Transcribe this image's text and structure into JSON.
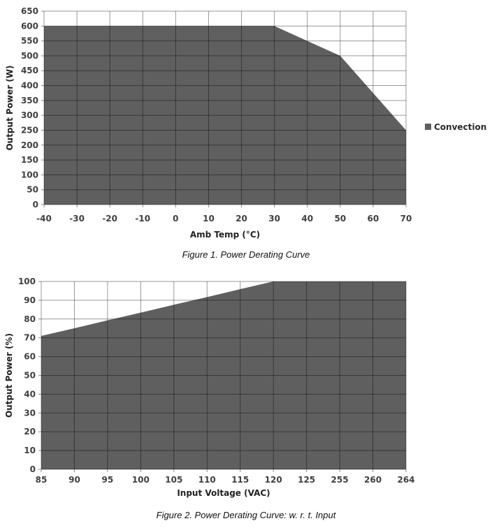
{
  "page": {
    "background": "#ffffff"
  },
  "chart_data": [
    {
      "type": "area",
      "caption": "Figure 1. Power Derating Curve",
      "xlabel": "Amb Temp (°C)",
      "ylabel": "Output Power (W)",
      "categories": [
        "-40",
        "-30",
        "-20",
        "-10",
        "0",
        "10",
        "20",
        "30",
        "40",
        "50",
        "60",
        "70"
      ],
      "series": [
        {
          "name": "Convection",
          "values": [
            600,
            600,
            600,
            600,
            600,
            600,
            600,
            600,
            550,
            500,
            375,
            250
          ]
        }
      ],
      "ylim": [
        0,
        650
      ],
      "y_ticks": [
        0,
        50,
        100,
        150,
        200,
        250,
        300,
        350,
        400,
        450,
        500,
        550,
        600,
        650
      ],
      "grid": true,
      "legend": {
        "visible": true,
        "position": "right-middle",
        "label": "Convection"
      },
      "colors": {
        "fill": "#5f5f5f",
        "grid": "#000000",
        "grid_opacity": 0.4,
        "tick_mark": "#8a8a8a",
        "tick_text": "#3f3f3f",
        "title_text": "#222222"
      }
    },
    {
      "type": "area",
      "caption": "Figure 2. Power Derating Curve: w. r. t. Input",
      "xlabel": "Input Voltage (VAC)",
      "ylabel": "Output Power (%)",
      "categories": [
        "85",
        "90",
        "95",
        "100",
        "105",
        "110",
        "115",
        "120",
        "125",
        "255",
        "260",
        "264"
      ],
      "series": [
        {
          "name": "",
          "values": [
            71,
            75.1,
            79.3,
            83.4,
            87.6,
            91.7,
            95.9,
            100,
            100,
            100,
            100,
            100
          ]
        }
      ],
      "ylim": [
        0,
        100
      ],
      "y_ticks": [
        0,
        10,
        20,
        30,
        40,
        50,
        60,
        70,
        80,
        90,
        100
      ],
      "grid": true,
      "legend": {
        "visible": false
      },
      "colors": {
        "fill": "#5f5f5f",
        "grid": "#000000",
        "grid_opacity": 0.4,
        "tick_mark": "#8a8a8a",
        "tick_text": "#3f3f3f",
        "title_text": "#222222"
      }
    }
  ]
}
